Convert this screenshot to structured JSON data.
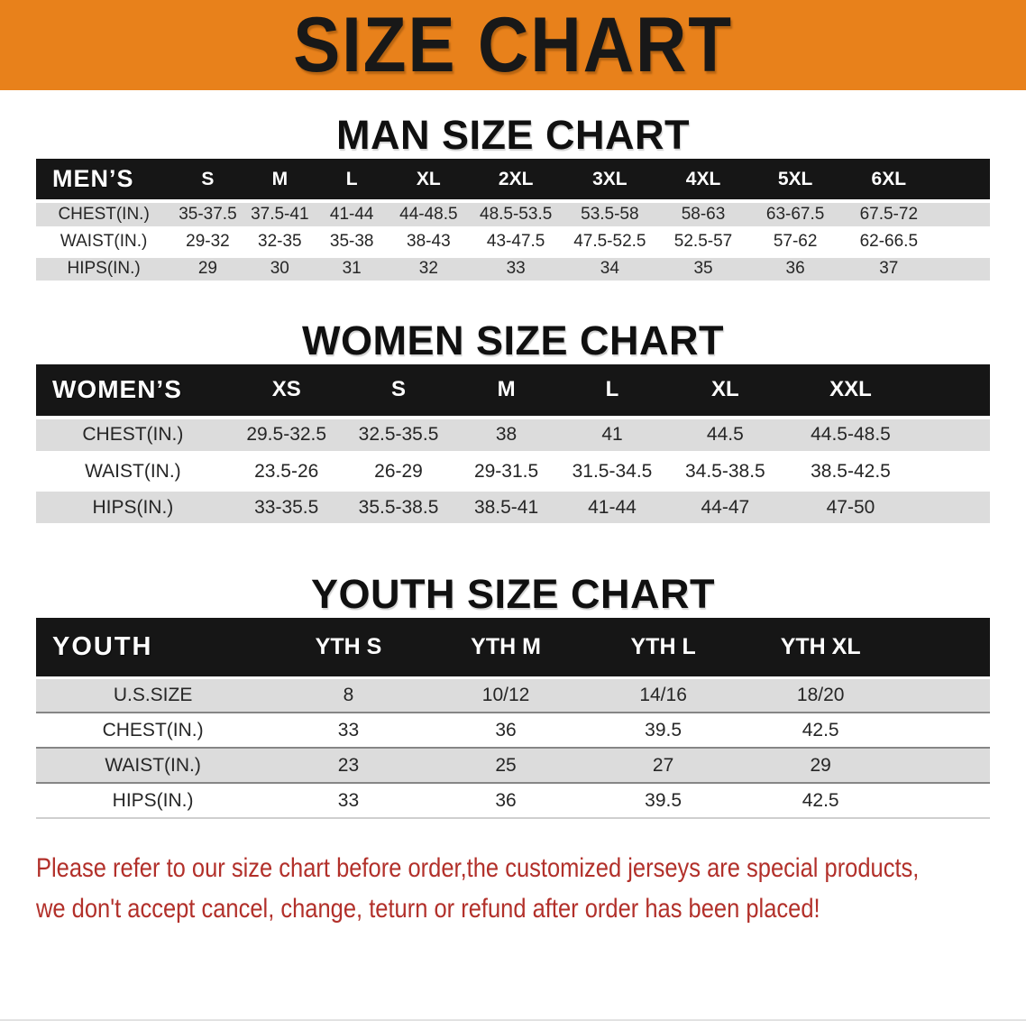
{
  "colors": {
    "banner_bg": "#E8811B",
    "band_black": "#161616",
    "row_shade": "#DCDCDC",
    "disclaimer_red": "#B2302A"
  },
  "banner": {
    "title": "SIZE CHART"
  },
  "sections": [
    {
      "heading": "MAN SIZE CHART",
      "table": {
        "header_label": "MEN’S",
        "columns": [
          "S",
          "M",
          "L",
          "XL",
          "2XL",
          "3XL",
          "4XL",
          "5XL",
          "6XL"
        ],
        "rows": [
          {
            "label": "CHEST(IN.)",
            "values": [
              "35-37.5",
              "37.5-41",
              "41-44",
              "44-48.5",
              "48.5-53.5",
              "53.5-58",
              "58-63",
              "63-67.5",
              "67.5-72"
            ]
          },
          {
            "label": "WAIST(IN.)",
            "values": [
              "29-32",
              "32-35",
              "35-38",
              "38-43",
              "43-47.5",
              "47.5-52.5",
              "52.5-57",
              "57-62",
              "62-66.5"
            ]
          },
          {
            "label": "HIPS(IN.)",
            "values": [
              "29",
              "30",
              "31",
              "32",
              "33",
              "34",
              "35",
              "36",
              "37"
            ]
          }
        ]
      }
    },
    {
      "heading": "WOMEN SIZE CHART",
      "table": {
        "header_label": "WOMEN’S",
        "columns": [
          "XS",
          "S",
          "M",
          "L",
          "XL",
          "XXL"
        ],
        "rows": [
          {
            "label": "CHEST(IN.)",
            "values": [
              "29.5-32.5",
              "32.5-35.5",
              "38",
              "41",
              "44.5",
              "44.5-48.5"
            ]
          },
          {
            "label": "WAIST(IN.)",
            "values": [
              "23.5-26",
              "26-29",
              "29-31.5",
              "31.5-34.5",
              "34.5-38.5",
              "38.5-42.5"
            ]
          },
          {
            "label": "HIPS(IN.)",
            "values": [
              "33-35.5",
              "35.5-38.5",
              "38.5-41",
              "41-44",
              "44-47",
              "47-50"
            ]
          }
        ]
      }
    },
    {
      "heading": "YOUTH SIZE CHART",
      "table": {
        "header_label": "YOUTH",
        "columns": [
          "YTH S",
          "YTH M",
          "YTH L",
          "YTH XL"
        ],
        "rows": [
          {
            "label": "U.S.SIZE",
            "values": [
              "8",
              "10/12",
              "14/16",
              "18/20"
            ]
          },
          {
            "label": "CHEST(IN.)",
            "values": [
              "33",
              "36",
              "39.5",
              "42.5"
            ]
          },
          {
            "label": "WAIST(IN.)",
            "values": [
              "23",
              "25",
              "27",
              "29"
            ]
          },
          {
            "label": "HIPS(IN.)",
            "values": [
              "33",
              "36",
              "39.5",
              "42.5"
            ]
          }
        ]
      }
    }
  ],
  "disclaimer": {
    "line1": "Please refer to our size chart before order,the customized jerseys are special products,",
    "line2": "we don't accept cancel, change, teturn or refund after order has been placed!"
  }
}
